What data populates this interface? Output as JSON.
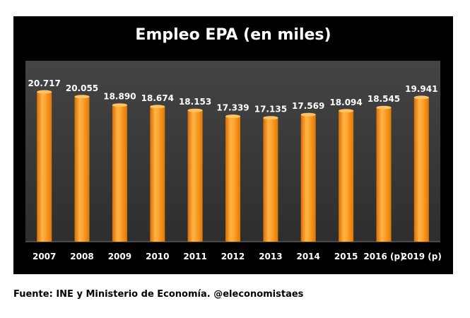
{
  "chart_data": {
    "type": "bar",
    "title": "Empleo EPA (en miles)",
    "xlabel": "",
    "ylabel": "",
    "categories": [
      "2007",
      "2008",
      "2009",
      "2010",
      "2011",
      "2012",
      "2013",
      "2014",
      "2015",
      "2016 (p)",
      "2019 (p)"
    ],
    "values": [
      20717,
      20055,
      18890,
      18674,
      18153,
      17339,
      17135,
      17569,
      18094,
      18545,
      19941
    ],
    "value_labels": [
      "20.717",
      "20.055",
      "18.890",
      "18.674",
      "18.153",
      "17.339",
      "17.135",
      "17.569",
      "18.094",
      "18.545",
      "19.941"
    ],
    "ylim": [
      0,
      22000
    ],
    "grid": false,
    "legend": "none",
    "colors": {
      "bar": "#f7941d",
      "plot_background": "#3a3a3a",
      "frame_background": "#000000",
      "text": "#ffffff"
    }
  },
  "footer": {
    "source": "Fuente: INE y Ministerio de Economía. @eleconomistaes"
  }
}
